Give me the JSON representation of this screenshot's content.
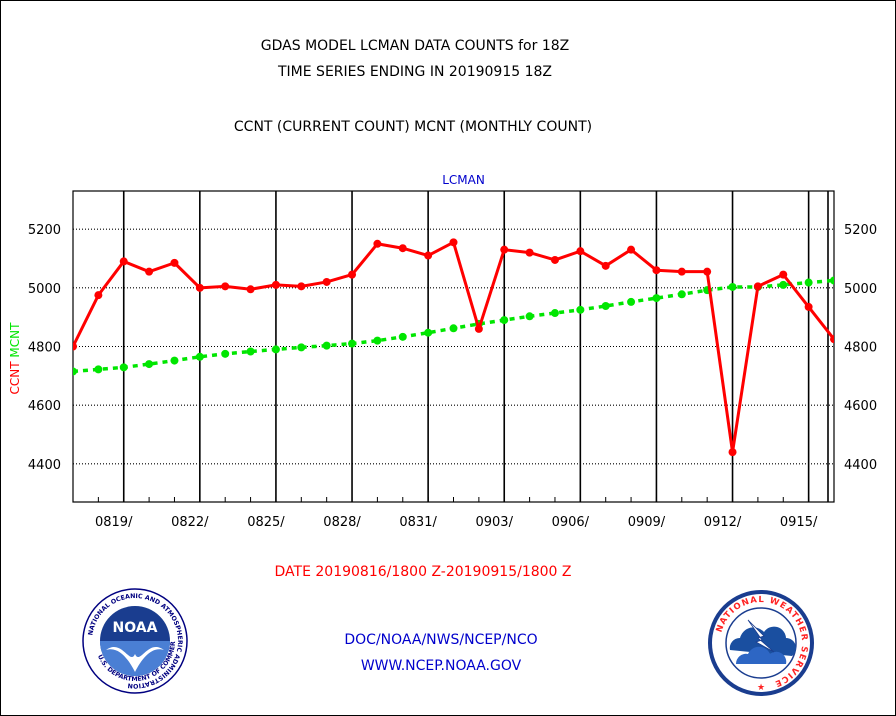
{
  "titles": {
    "line1": "GDAS MODEL LCMAN DATA COUNTS for 18Z",
    "line2": "TIME SERIES ENDING IN 20190915 18Z",
    "line3": "CCNT (CURRENT COUNT) MCNT (MONTHLY COUNT)"
  },
  "footer": {
    "date_range": "DATE 20190816/1800 Z-20190915/1800 Z",
    "org": "DOC/NOAA/NWS/NCEP/NCO",
    "url": "WWW.NCEP.NOAA.GOV"
  },
  "logos": {
    "noaa_text": "NOAA",
    "noaa_ring": "NATIONAL OCEANIC AND ATMOSPHERIC ADMINISTRATION",
    "noaa_ring_bottom": "U.S. DEPARTMENT OF COMMERCE",
    "nws_ring": "NATIONAL WEATHER SERVICE"
  },
  "colors": {
    "ccnt": "#ff0000",
    "mcnt": "#00e600",
    "title_text": "#000000",
    "panel_label": "#0000cc",
    "date_text": "#ff0000",
    "footer_text": "#0000cc"
  },
  "chart_data": {
    "type": "line",
    "title": "LCMAN",
    "ylabel_parts": [
      "CCNT",
      "MCNT"
    ],
    "ylim": [
      4270,
      5330
    ],
    "yticks": [
      4400,
      4600,
      4800,
      5000,
      5200
    ],
    "x_day_range": [
      0,
      30
    ],
    "x_vertical_grid_days": [
      2,
      5,
      8,
      11,
      14,
      17,
      20,
      23,
      26,
      29
    ],
    "xticks": [
      {
        "day": 2,
        "label": "0819/"
      },
      {
        "day": 5,
        "label": "0822/"
      },
      {
        "day": 8,
        "label": "0825/"
      },
      {
        "day": 11,
        "label": "0828/"
      },
      {
        "day": 14,
        "label": "0831/"
      },
      {
        "day": 17,
        "label": "0903/"
      },
      {
        "day": 20,
        "label": "0906/"
      },
      {
        "day": 23,
        "label": "0909/"
      },
      {
        "day": 26,
        "label": "0912/"
      },
      {
        "day": 29,
        "label": "0915/"
      }
    ],
    "series": [
      {
        "name": "CCNT",
        "color": "#ff0000",
        "style": "solid",
        "x": [
          0,
          1,
          2,
          3,
          4,
          5,
          6,
          7,
          8,
          9,
          10,
          11,
          12,
          13,
          14,
          15,
          16,
          17,
          18,
          19,
          20,
          21,
          22,
          23,
          24,
          25,
          26,
          27,
          28,
          29,
          30
        ],
        "values": [
          4800,
          4975,
          5090,
          5055,
          5085,
          5000,
          5005,
          4995,
          5010,
          5005,
          5020,
          5045,
          5150,
          5135,
          5110,
          5155,
          4860,
          5130,
          5120,
          5095,
          5125,
          5075,
          5130,
          5060,
          5055,
          5055,
          4440,
          5005,
          5045,
          4935,
          4825
        ]
      },
      {
        "name": "MCNT",
        "color": "#00e600",
        "style": "dashed",
        "x": [
          0,
          1,
          2,
          3,
          4,
          5,
          6,
          7,
          8,
          9,
          10,
          11,
          12,
          13,
          14,
          15,
          16,
          17,
          18,
          19,
          20,
          21,
          22,
          23,
          24,
          25,
          26,
          27,
          28,
          29,
          30
        ],
        "values": [
          4715,
          4722,
          4729,
          4740,
          4752,
          4765,
          4775,
          4783,
          4790,
          4797,
          4803,
          4810,
          4820,
          4833,
          4847,
          4862,
          4877,
          4890,
          4903,
          4914,
          4925,
          4938,
          4952,
          4965,
          4978,
          4992,
          5003,
          5003,
          5010,
          5018,
          5025
        ]
      }
    ]
  }
}
